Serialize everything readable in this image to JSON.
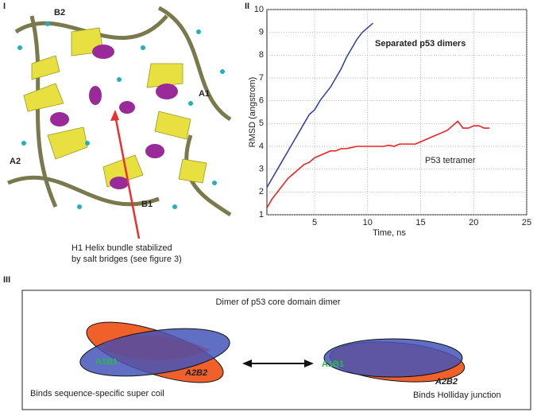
{
  "panel_labels": [
    "I",
    "II",
    "III"
  ],
  "structure": {
    "labels": [
      "B2",
      "A1",
      "A2",
      "B1"
    ],
    "annotation": [
      "H1 Helix bundle stabilized",
      "by salt bridges (see figure 3)"
    ]
  },
  "chart_data": {
    "type": "line",
    "xlabel": "Time, ns",
    "ylabel": "RMSD (angstrom)",
    "xlim": [
      0.5,
      25
    ],
    "ylim": [
      1,
      10
    ],
    "xticks": [
      5,
      10,
      15,
      20,
      25
    ],
    "yticks": [
      1,
      2,
      3,
      4,
      5,
      6,
      7,
      8,
      9,
      10
    ],
    "grid": true,
    "annotations": [
      "Separated p53 dimers",
      "P53 tetramer"
    ],
    "x": [
      0.5,
      1,
      1.5,
      2,
      2.5,
      3,
      3.5,
      4,
      4.5,
      5,
      5.5,
      6,
      6.5,
      7,
      7.5,
      8,
      8.5,
      9,
      9.5,
      10,
      10.5,
      11,
      11.5,
      12,
      12.5,
      13,
      13.5,
      14,
      14.5,
      15,
      15.5,
      16,
      16.5,
      17,
      17.5,
      18,
      18.5,
      19,
      19.5,
      20,
      20.5,
      21,
      21.5
    ],
    "series": [
      {
        "color": "#3344aa",
        "values": [
          2.2,
          2.6,
          3.0,
          3.4,
          3.8,
          4.2,
          4.6,
          5.0,
          5.4,
          5.6,
          6.0,
          6.3,
          6.6,
          7.0,
          7.4,
          7.9,
          8.3,
          8.7,
          9.0,
          9.2,
          9.4,
          null,
          null,
          null,
          null,
          null,
          null,
          null,
          null,
          null,
          null,
          null,
          null,
          null,
          null,
          null,
          null,
          null,
          null,
          null,
          null,
          null,
          null
        ]
      },
      {
        "color": "#ee2222",
        "values": [
          1.3,
          1.7,
          2.0,
          2.3,
          2.6,
          2.8,
          3.0,
          3.2,
          3.3,
          3.5,
          3.6,
          3.7,
          3.8,
          3.8,
          3.9,
          3.9,
          3.95,
          4.0,
          4.0,
          4.0,
          4.0,
          4.0,
          4.0,
          4.05,
          4.0,
          4.1,
          4.1,
          4.1,
          4.1,
          4.2,
          4.3,
          4.4,
          4.5,
          4.6,
          4.7,
          4.9,
          5.1,
          4.8,
          4.8,
          4.9,
          4.9,
          4.8,
          4.8
        ]
      }
    ]
  },
  "diagram": {
    "title": "Dimer of p53 core domain dimer",
    "left": {
      "top": "A1B1",
      "bottom": "A2B2",
      "caption": "Binds sequence-specific super coil"
    },
    "right": {
      "top": "A1B1",
      "bottom": "A2B2",
      "caption": "Binds Holliday junction"
    }
  }
}
